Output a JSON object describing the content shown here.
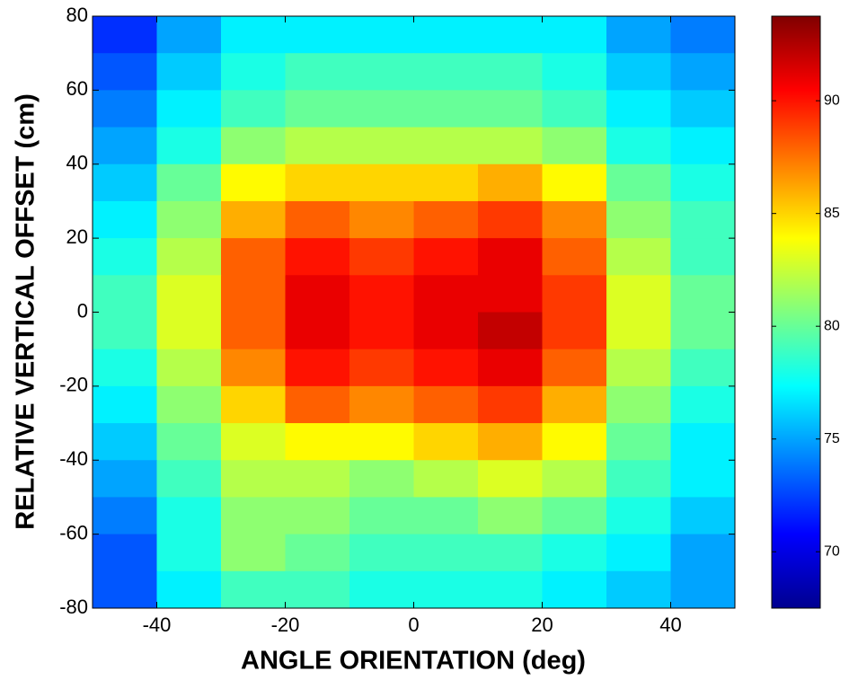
{
  "chart_data": {
    "type": "heatmap",
    "x_label": "ANGLE ORIENTATION (deg)",
    "y_label": "RELATIVE VERTICAL OFFSET (cm)",
    "x": [
      -45,
      -35,
      -25,
      -15,
      -5,
      5,
      15,
      25,
      35,
      45
    ],
    "y": [
      75,
      65,
      55,
      45,
      35,
      25,
      15,
      5,
      -5,
      -15,
      -25,
      -35,
      -45,
      -55,
      -65,
      -75
    ],
    "values": [
      [
        72,
        75,
        77,
        77,
        77,
        77,
        77,
        77,
        75,
        74
      ],
      [
        73,
        76,
        78,
        79,
        79,
        79,
        79,
        78,
        76,
        75
      ],
      [
        74,
        77,
        79,
        80,
        80,
        80,
        80,
        79,
        77,
        76
      ],
      [
        75,
        78,
        81,
        82,
        82,
        82,
        82,
        81,
        78,
        77
      ],
      [
        76,
        80,
        84,
        85,
        85,
        85,
        86,
        84,
        80,
        78
      ],
      [
        77,
        81,
        86,
        88,
        87,
        88,
        89,
        87,
        81,
        79
      ],
      [
        78,
        82,
        88,
        90,
        89,
        90,
        91,
        88,
        82,
        79
      ],
      [
        79,
        83,
        88,
        91,
        90,
        91,
        91,
        89,
        83,
        80
      ],
      [
        79,
        83,
        88,
        91,
        90,
        91,
        92,
        89,
        83,
        80
      ],
      [
        78,
        82,
        87,
        90,
        89,
        90,
        91,
        88,
        82,
        79
      ],
      [
        77,
        81,
        85,
        88,
        87,
        88,
        89,
        86,
        81,
        78
      ],
      [
        76,
        80,
        83,
        84,
        84,
        85,
        86,
        84,
        80,
        77
      ],
      [
        75,
        79,
        82,
        82,
        81,
        82,
        83,
        82,
        79,
        77
      ],
      [
        74,
        78,
        81,
        81,
        80,
        80,
        81,
        80,
        78,
        76
      ],
      [
        73,
        78,
        81,
        80,
        79,
        79,
        79,
        78,
        77,
        75
      ],
      [
        73,
        77,
        79,
        79,
        78,
        78,
        78,
        77,
        76,
        75
      ]
    ],
    "xlim": [
      -50,
      50
    ],
    "xticks": [
      -40,
      -20,
      0,
      20,
      40
    ],
    "ylim": [
      -80,
      80
    ],
    "yticks": [
      -80,
      -60,
      -40,
      -20,
      0,
      20,
      40,
      60,
      80
    ],
    "colormap": "jet",
    "clim": [
      67.5,
      93.75
    ],
    "cticks": [
      70,
      75,
      80,
      85,
      90
    ]
  }
}
